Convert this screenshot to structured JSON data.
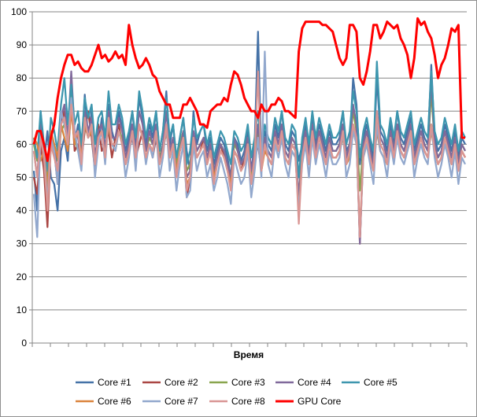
{
  "chart_data": {
    "type": "line",
    "title": "",
    "xlabel": "Время",
    "ylabel": "",
    "ylim": [
      0,
      100
    ],
    "yticks": [
      0,
      10,
      20,
      30,
      40,
      50,
      60,
      70,
      80,
      90,
      100
    ],
    "grid": "horizontal",
    "legend_position": "bottom",
    "x_count": 128,
    "series": [
      {
        "name": "Core #1",
        "color": "#4572A7",
        "values": [
          52,
          40,
          70,
          55,
          64,
          50,
          48,
          40,
          58,
          62,
          55,
          72,
          60,
          66,
          58,
          75,
          62,
          70,
          55,
          60,
          68,
          58,
          72,
          64,
          60,
          70,
          65,
          58,
          62,
          70,
          60,
          74,
          68,
          60,
          66,
          62,
          70,
          58,
          64,
          76,
          60,
          66,
          55,
          62,
          68,
          58,
          52,
          70,
          60,
          64,
          66,
          58,
          62,
          54,
          58,
          62,
          60,
          56,
          50,
          62,
          60,
          55,
          58,
          64,
          52,
          60,
          94,
          55,
          64,
          60,
          58,
          66,
          62,
          70,
          60,
          58,
          64,
          62,
          55,
          60,
          66,
          58,
          68,
          60,
          66,
          62,
          58,
          64,
          60,
          60,
          62,
          70,
          58,
          60,
          80,
          72,
          54,
          62,
          66,
          60,
          56,
          80,
          64,
          62,
          58,
          66,
          60,
          70,
          62,
          60,
          64,
          68,
          58,
          62,
          66,
          62,
          60,
          84,
          62,
          58,
          60,
          66,
          62,
          58,
          64,
          56,
          62,
          60
        ]
      },
      {
        "name": "Core #2",
        "color": "#AA4643",
        "values": [
          50,
          45,
          60,
          52,
          35,
          60,
          58,
          48,
          66,
          70,
          62,
          74,
          58,
          60,
          55,
          64,
          70,
          62,
          52,
          66,
          58,
          60,
          64,
          56,
          62,
          66,
          60,
          54,
          58,
          62,
          56,
          60,
          64,
          58,
          60,
          56,
          62,
          54,
          58,
          64,
          56,
          60,
          52,
          58,
          62,
          44,
          50,
          60,
          56,
          58,
          62,
          54,
          58,
          50,
          56,
          60,
          56,
          54,
          48,
          58,
          56,
          52,
          56,
          60,
          50,
          56,
          60,
          52,
          60,
          56,
          54,
          62,
          58,
          62,
          56,
          54,
          60,
          58,
          40,
          56,
          62,
          54,
          64,
          56,
          62,
          58,
          54,
          60,
          56,
          56,
          58,
          64,
          54,
          58,
          66,
          62,
          30,
          58,
          62,
          56,
          52,
          66,
          60,
          58,
          54,
          62,
          56,
          64,
          58,
          56,
          60,
          64,
          54,
          58,
          62,
          58,
          56,
          66,
          58,
          54,
          56,
          62,
          58,
          54,
          60,
          52,
          58,
          56
        ]
      },
      {
        "name": "Core #3",
        "color": "#89A54E",
        "values": [
          60,
          55,
          62,
          58,
          50,
          62,
          58,
          55,
          64,
          66,
          60,
          76,
          62,
          58,
          55,
          66,
          62,
          64,
          56,
          62,
          64,
          58,
          66,
          60,
          60,
          64,
          62,
          56,
          60,
          64,
          58,
          66,
          62,
          58,
          62,
          60,
          64,
          56,
          60,
          66,
          58,
          62,
          54,
          60,
          64,
          52,
          54,
          62,
          58,
          60,
          62,
          56,
          60,
          52,
          56,
          60,
          58,
          54,
          50,
          60,
          58,
          54,
          56,
          62,
          50,
          58,
          64,
          54,
          62,
          58,
          56,
          64,
          60,
          64,
          58,
          56,
          62,
          60,
          44,
          58,
          64,
          56,
          66,
          58,
          64,
          60,
          56,
          62,
          58,
          58,
          60,
          66,
          56,
          60,
          70,
          64,
          46,
          60,
          64,
          58,
          54,
          68,
          62,
          60,
          56,
          64,
          58,
          66,
          60,
          58,
          62,
          66,
          56,
          60,
          64,
          60,
          58,
          76,
          60,
          56,
          58,
          64,
          60,
          56,
          62,
          54,
          60,
          58
        ]
      },
      {
        "name": "Core #4",
        "color": "#80699B",
        "values": [
          58,
          50,
          66,
          56,
          44,
          64,
          60,
          50,
          68,
          72,
          62,
          82,
          64,
          62,
          56,
          70,
          64,
          68,
          56,
          64,
          66,
          58,
          70,
          62,
          62,
          68,
          64,
          56,
          60,
          66,
          58,
          70,
          66,
          58,
          64,
          60,
          66,
          54,
          60,
          70,
          58,
          62,
          52,
          58,
          64,
          50,
          52,
          64,
          58,
          60,
          62,
          56,
          60,
          52,
          56,
          60,
          58,
          54,
          50,
          62,
          58,
          54,
          56,
          62,
          52,
          58,
          66,
          54,
          62,
          58,
          56,
          64,
          60,
          66,
          58,
          56,
          62,
          60,
          44,
          58,
          64,
          56,
          66,
          58,
          64,
          60,
          56,
          62,
          58,
          58,
          60,
          66,
          56,
          60,
          72,
          66,
          30,
          60,
          64,
          58,
          54,
          70,
          62,
          60,
          56,
          64,
          58,
          66,
          60,
          58,
          62,
          66,
          56,
          60,
          64,
          60,
          58,
          80,
          60,
          56,
          58,
          64,
          60,
          56,
          62,
          54,
          60,
          58
        ]
      },
      {
        "name": "Core #5",
        "color": "#3D96AE",
        "values": [
          62,
          56,
          70,
          60,
          52,
          68,
          64,
          58,
          72,
          80,
          66,
          78,
          66,
          70,
          60,
          74,
          68,
          72,
          60,
          68,
          70,
          62,
          76,
          66,
          66,
          72,
          68,
          60,
          64,
          70,
          62,
          76,
          70,
          62,
          68,
          64,
          70,
          58,
          64,
          74,
          62,
          66,
          56,
          62,
          68,
          54,
          58,
          68,
          62,
          64,
          66,
          60,
          64,
          56,
          60,
          64,
          62,
          58,
          54,
          64,
          62,
          58,
          60,
          66,
          56,
          62,
          70,
          58,
          66,
          62,
          60,
          68,
          64,
          70,
          62,
          60,
          66,
          64,
          50,
          62,
          68,
          60,
          70,
          62,
          68,
          64,
          60,
          66,
          62,
          62,
          64,
          70,
          60,
          64,
          76,
          70,
          56,
          64,
          68,
          62,
          58,
          85,
          66,
          64,
          60,
          68,
          62,
          70,
          64,
          62,
          66,
          70,
          60,
          64,
          68,
          64,
          62,
          82,
          64,
          60,
          62,
          68,
          64,
          60,
          66,
          58,
          64,
          62
        ]
      },
      {
        "name": "Core #6",
        "color": "#DB843D",
        "values": [
          62,
          60,
          55,
          58,
          46,
          64,
          60,
          56,
          66,
          62,
          58,
          70,
          60,
          64,
          56,
          66,
          62,
          64,
          54,
          62,
          64,
          56,
          66,
          60,
          58,
          64,
          60,
          54,
          58,
          64,
          56,
          66,
          62,
          56,
          60,
          58,
          64,
          54,
          58,
          64,
          56,
          60,
          52,
          58,
          62,
          48,
          50,
          62,
          56,
          58,
          60,
          54,
          58,
          50,
          54,
          58,
          56,
          52,
          48,
          58,
          56,
          52,
          54,
          60,
          48,
          56,
          62,
          52,
          58,
          56,
          54,
          60,
          58,
          62,
          56,
          54,
          58,
          56,
          40,
          56,
          60,
          54,
          62,
          56,
          60,
          58,
          54,
          58,
          56,
          56,
          58,
          62,
          54,
          56,
          64,
          60,
          34,
          56,
          60,
          56,
          52,
          64,
          58,
          56,
          54,
          60,
          56,
          62,
          58,
          56,
          58,
          62,
          54,
          58,
          60,
          58,
          56,
          64,
          58,
          54,
          56,
          60,
          58,
          54,
          60,
          52,
          58,
          56
        ]
      },
      {
        "name": "Core #7",
        "color": "#92A8CD",
        "values": [
          45,
          32,
          64,
          58,
          42,
          62,
          58,
          48,
          70,
          66,
          60,
          74,
          64,
          58,
          52,
          68,
          62,
          66,
          50,
          60,
          64,
          54,
          68,
          60,
          58,
          64,
          60,
          50,
          56,
          64,
          52,
          66,
          62,
          54,
          60,
          56,
          64,
          50,
          56,
          66,
          52,
          58,
          46,
          54,
          60,
          44,
          46,
          60,
          52,
          56,
          58,
          50,
          54,
          46,
          50,
          56,
          52,
          48,
          42,
          56,
          52,
          48,
          50,
          58,
          44,
          52,
          62,
          50,
          88,
          54,
          50,
          60,
          56,
          62,
          54,
          50,
          58,
          56,
          40,
          54,
          60,
          50,
          62,
          54,
          60,
          56,
          50,
          58,
          54,
          54,
          56,
          64,
          50,
          54,
          64,
          60,
          32,
          56,
          60,
          54,
          48,
          66,
          58,
          56,
          50,
          60,
          54,
          62,
          56,
          54,
          58,
          62,
          50,
          56,
          60,
          56,
          54,
          66,
          56,
          50,
          54,
          60,
          56,
          50,
          58,
          48,
          56,
          54
        ]
      },
      {
        "name": "Core #8",
        "color": "#D99694",
        "values": [
          58,
          50,
          62,
          56,
          40,
          60,
          56,
          52,
          66,
          68,
          60,
          72,
          62,
          64,
          54,
          68,
          62,
          66,
          54,
          62,
          64,
          56,
          68,
          60,
          60,
          64,
          60,
          54,
          58,
          64,
          56,
          66,
          62,
          56,
          60,
          58,
          64,
          54,
          58,
          66,
          56,
          60,
          50,
          58,
          62,
          46,
          50,
          62,
          56,
          58,
          60,
          54,
          58,
          48,
          54,
          58,
          56,
          52,
          46,
          58,
          56,
          52,
          54,
          60,
          48,
          56,
          82,
          52,
          60,
          56,
          54,
          62,
          58,
          64,
          56,
          54,
          60,
          58,
          36,
          56,
          62,
          54,
          64,
          56,
          62,
          58,
          54,
          60,
          56,
          56,
          58,
          64,
          54,
          58,
          66,
          62,
          32,
          58,
          62,
          56,
          52,
          70,
          60,
          58,
          54,
          62,
          56,
          64,
          58,
          56,
          60,
          64,
          54,
          58,
          62,
          58,
          56,
          66,
          58,
          54,
          56,
          62,
          58,
          54,
          60,
          52,
          58,
          56
        ]
      },
      {
        "name": "GPU Core",
        "color": "#FF0000",
        "values": [
          60,
          64,
          64,
          60,
          55,
          62,
          66,
          74,
          80,
          84,
          87,
          87,
          84,
          85,
          83,
          82,
          82,
          84,
          87,
          90,
          86,
          87,
          85,
          86,
          88,
          86,
          87,
          84,
          96,
          90,
          86,
          83,
          84,
          86,
          84,
          81,
          80,
          76,
          74,
          72,
          72,
          68,
          68,
          68,
          72,
          72,
          74,
          72,
          70,
          66,
          66,
          65,
          70,
          71,
          72,
          72,
          74,
          73,
          78,
          82,
          81,
          78,
          74,
          72,
          70,
          70,
          68,
          72,
          70,
          70,
          72,
          72,
          74,
          73,
          70,
          70,
          69,
          68,
          88,
          95,
          97,
          97,
          97,
          97,
          97,
          96,
          96,
          95,
          94,
          90,
          86,
          84,
          86,
          96,
          96,
          94,
          80,
          78,
          82,
          88,
          96,
          96,
          92,
          94,
          97,
          96,
          95,
          96,
          92,
          90,
          87,
          80,
          86,
          98,
          96,
          97,
          94,
          92,
          87,
          80,
          84,
          86,
          90,
          95,
          94,
          96,
          62,
          62
        ]
      }
    ]
  },
  "legend_rows": [
    [
      0,
      1,
      2,
      3,
      4
    ],
    [
      5,
      6,
      7,
      8
    ]
  ]
}
